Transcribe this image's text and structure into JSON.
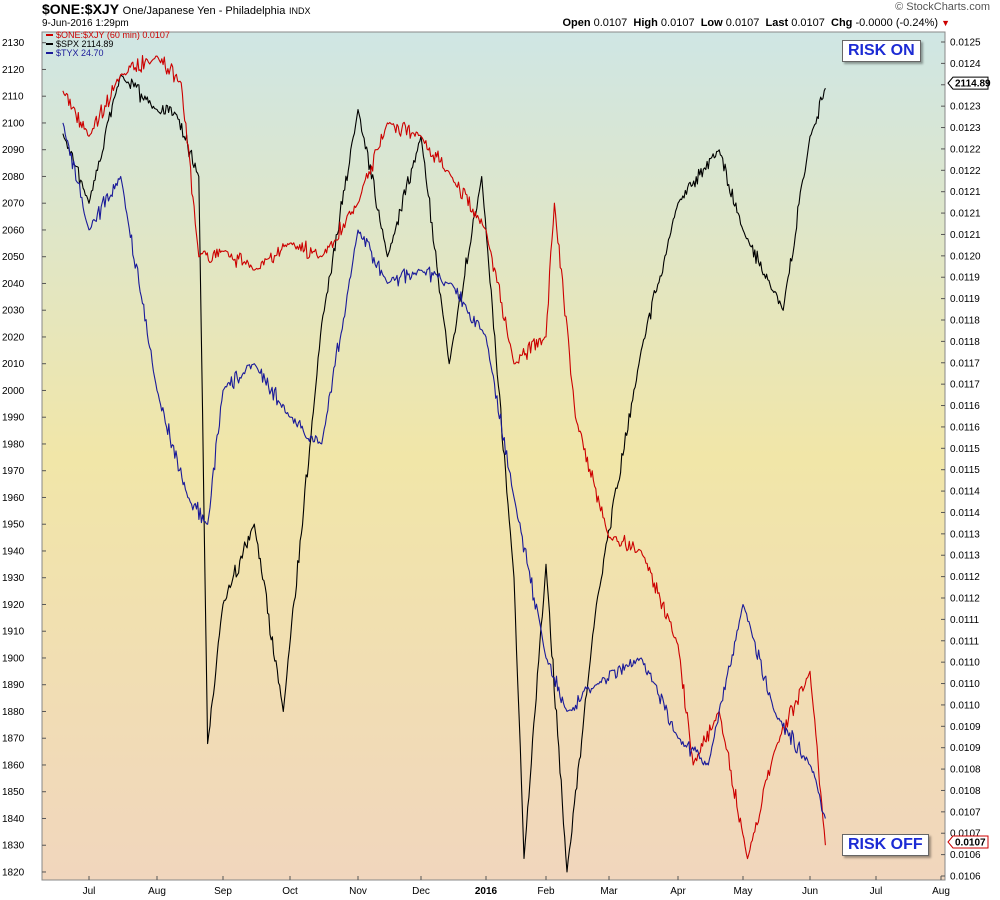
{
  "header": {
    "symbol": "$ONE:$XJY",
    "name": "One/Japanese Yen - Philadelphia",
    "exchange": "INDX",
    "date": "9-Jun-2016 1:29pm",
    "open_label": "Open",
    "open": "0.0107",
    "high_label": "High",
    "high": "0.0107",
    "low_label": "Low",
    "low": "0.0107",
    "last_label": "Last",
    "last": "0.0107",
    "chg_label": "Chg",
    "chg": "-0.0000 (-0.24%)",
    "logo": "© StockCharts.com"
  },
  "legend": [
    {
      "label": "$ONE:$XJY (60 min) 0.0107",
      "color": "#cc0000"
    },
    {
      "label": "$SPX 2114.89",
      "color": "#000000"
    },
    {
      "label": "$TYX 24.70",
      "color": "#1a1a99"
    }
  ],
  "annotations": {
    "risk_on": "RISK ON",
    "risk_off": "RISK OFF"
  },
  "markers": {
    "right_top": "2114.89",
    "right_bottom": "0.0107"
  },
  "colors": {
    "bg_top": "#cfe6e4",
    "bg_mid": "#f1e6a8",
    "bg_bottom": "#f1d6bd",
    "ono_xjy": "#cc0000",
    "spx": "#000000",
    "tyx": "#1a1a99",
    "annotation_text": "#1c2bd4"
  },
  "chart_data": {
    "type": "line",
    "x_labels": [
      "Jul",
      "Aug",
      "Sep",
      "Oct",
      "Nov",
      "Dec",
      "2016",
      "Feb",
      "Mar",
      "Apr",
      "May",
      "Jun",
      "Jul",
      "Aug"
    ],
    "y_left_ticks": [
      1820,
      1830,
      1840,
      1850,
      1860,
      1870,
      1880,
      1890,
      1900,
      1910,
      1920,
      1930,
      1940,
      1950,
      1960,
      1970,
      1980,
      1990,
      2000,
      2010,
      2020,
      2030,
      2040,
      2050,
      2060,
      2070,
      2080,
      2090,
      2100,
      2110,
      2120,
      2130
    ],
    "y_left_range": [
      1817,
      2134
    ],
    "y_right_ticks": [
      "0.0106",
      "0.0106",
      "0.0107",
      "0.0107",
      "0.0108",
      "0.0108",
      "0.0109",
      "0.0109",
      "0.0110",
      "0.0110",
      "0.0110",
      "0.0111",
      "0.0111",
      "0.0112",
      "0.0112",
      "0.0113",
      "0.0113",
      "0.0114",
      "0.0114",
      "0.0115",
      "0.0115",
      "0.0116",
      "0.0116",
      "0.0117",
      "0.0117",
      "0.0118",
      "0.0118",
      "0.0119",
      "0.0119",
      "0.0120",
      "0.0121",
      "0.0121",
      "0.0121",
      "0.0122",
      "0.0122",
      "0.0123",
      "0.0123",
      "0.0124",
      "0.0124",
      "0.0125"
    ],
    "series": [
      {
        "name": "$SPX",
        "color": "#000000",
        "x": [
          "Jun 15",
          "Jul 1",
          "Jul 15",
          "Aug 1",
          "Aug 10",
          "Aug 20",
          "Aug 24",
          "Sep 1",
          "Sep 15",
          "Sep 28",
          "Oct 15",
          "Nov 1",
          "Nov 15",
          "Dec 1",
          "Dec 14",
          "Dec 29",
          "Jan 15",
          "Jan 20",
          "Feb 1",
          "Feb 11",
          "Feb 25",
          "Mar 15",
          "Apr 1",
          "Apr 20",
          "May 1",
          "May 19",
          "Jun 1",
          "Jun 8"
        ],
        "y": [
          2096,
          2070,
          2118,
          2105,
          2103,
          2080,
          1868,
          1920,
          1950,
          1880,
          2025,
          2105,
          2050,
          2095,
          2010,
          2080,
          1930,
          1825,
          1935,
          1820,
          1920,
          2015,
          2070,
          2090,
          2060,
          2030,
          2095,
          2113
        ]
      },
      {
        "name": "$ONE:$XJY",
        "color": "#cc0000",
        "x": [
          "Jun 15",
          "Jul 1",
          "Jul 15",
          "Aug 1",
          "Aug 12",
          "Aug 20",
          "Sep 1",
          "Sep 15",
          "Oct 1",
          "Oct 15",
          "Nov 1",
          "Nov 15",
          "Dec 1",
          "Dec 15",
          "Jan 1",
          "Jan 15",
          "Feb 1",
          "Feb 5",
          "Feb 15",
          "Mar 1",
          "Mar 15",
          "Apr 1",
          "Apr 8",
          "Apr 20",
          "May 3",
          "May 15",
          "Jun 1",
          "Jun 8"
        ],
        "y": [
          2112,
          2095,
          2118,
          2125,
          2115,
          2050,
          2052,
          2045,
          2055,
          2050,
          2070,
          2100,
          2095,
          2080,
          2060,
          2010,
          2020,
          2070,
          1990,
          1945,
          1940,
          1905,
          1860,
          1880,
          1825,
          1865,
          1895,
          1830
        ]
      },
      {
        "name": "$TYX",
        "color": "#1a1a99",
        "x": [
          "Jun 15",
          "Jul 1",
          "Jul 15",
          "Aug 1",
          "Aug 15",
          "Aug 24",
          "Sep 1",
          "Sep 15",
          "Oct 1",
          "Oct 15",
          "Nov 1",
          "Nov 15",
          "Dec 1",
          "Dec 15",
          "Jan 1",
          "Jan 15",
          "Feb 1",
          "Feb 11",
          "Feb 25",
          "Mar 15",
          "Apr 1",
          "Apr 15",
          "May 1",
          "May 15",
          "Jun 1",
          "Jun 8"
        ],
        "y": [
          2100,
          2060,
          2080,
          2000,
          1960,
          1950,
          2000,
          2010,
          1990,
          1980,
          2060,
          2040,
          2045,
          2040,
          2020,
          1960,
          1900,
          1880,
          1890,
          1900,
          1870,
          1860,
          1920,
          1880,
          1860,
          1840
        ]
      }
    ]
  }
}
